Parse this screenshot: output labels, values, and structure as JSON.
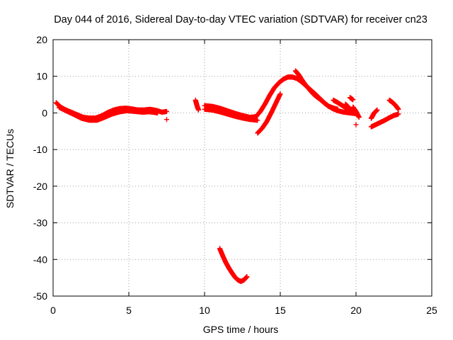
{
  "chart_data": {
    "type": "scatter",
    "title": "Day 044 of 2016, Sidereal Day-to-day VTEC variation (SDTVAR) for receiver cn23",
    "xlabel": "GPS time / hours",
    "ylabel": "SDTVAR / TECUs",
    "xlim": [
      0,
      25
    ],
    "ylim": [
      -50,
      20
    ],
    "x_ticks": [
      0,
      5,
      10,
      15,
      20,
      25
    ],
    "y_ticks": [
      20,
      10,
      0,
      -10,
      -20,
      -30,
      -40,
      -50
    ],
    "x_tick_labels": [
      "0",
      "5",
      "10",
      "15",
      "20",
      "25"
    ],
    "y_tick_labels": [
      "20",
      "10",
      "0",
      "-10",
      "-20",
      "-30",
      "-40",
      "-50"
    ],
    "grid": true,
    "colors": {
      "points": "#ff0000",
      "grid": "#a0a0a0",
      "frame": "#000000"
    },
    "series": [
      {
        "name": "SDTVAR",
        "marker": "plus",
        "segments": [
          {
            "x": [
              0.2,
              0.5,
              0.8,
              1.2,
              1.6,
              2.0,
              2.4,
              2.8,
              3.2,
              3.6,
              4.0,
              4.4,
              4.8,
              5.2,
              5.6,
              6.0,
              6.4,
              6.8,
              7.2,
              7.5
            ],
            "y": [
              2.8,
              1.6,
              0.9,
              0.2,
              -0.5,
              -1.2,
              -1.4,
              -1.4,
              -0.8,
              0.1,
              0.8,
              1.2,
              1.3,
              1.1,
              0.8,
              0.8,
              1.0,
              0.7,
              0.2,
              0.4
            ]
          },
          {
            "x": [
              0.4,
              0.9,
              1.4,
              1.9,
              2.4,
              2.9,
              3.4,
              3.9,
              4.4,
              4.9,
              5.4,
              5.9,
              6.4,
              6.9
            ],
            "y": [
              1.5,
              0.5,
              -0.5,
              -1.5,
              -2.0,
              -2.0,
              -1.2,
              -0.3,
              0.3,
              0.6,
              0.4,
              0.2,
              0.3,
              0.0
            ]
          },
          {
            "x": [
              7.5
            ],
            "y": [
              -1.8
            ]
          },
          {
            "x": [
              9.4,
              9.5,
              9.6
            ],
            "y": [
              3.5,
              2.0,
              0.8
            ]
          },
          {
            "x": [
              10.0,
              10.5,
              11.0,
              11.5,
              12.0,
              12.5,
              13.0,
              13.4,
              13.7,
              14.0,
              14.3,
              14.6,
              14.9,
              15.2,
              15.5,
              15.8,
              16.1,
              16.4,
              16.7,
              17.0,
              17.3,
              17.6,
              17.9,
              18.2,
              18.5,
              18.8,
              19.2,
              19.6,
              20.0
            ],
            "y": [
              2.0,
              1.8,
              1.3,
              0.6,
              -0.1,
              -0.7,
              -1.2,
              -1.0,
              0.5,
              2.5,
              4.8,
              6.8,
              8.2,
              9.2,
              9.8,
              9.8,
              9.4,
              8.5,
              7.4,
              6.3,
              5.2,
              4.0,
              2.8,
              1.8,
              1.1,
              0.6,
              0.2,
              0.0,
              -0.2
            ]
          },
          {
            "x": [
              10.0,
              10.5,
              11.0,
              11.5,
              12.0,
              12.5,
              13.0,
              13.5
            ],
            "y": [
              1.0,
              0.8,
              0.3,
              -0.3,
              -0.9,
              -1.4,
              -1.8,
              -2.0
            ]
          },
          {
            "x": [
              13.5,
              13.8,
              14.1,
              14.4,
              14.7,
              15.0
            ],
            "y": [
              -5.5,
              -4.2,
              -2.4,
              0.0,
              2.6,
              5.2
            ]
          },
          {
            "x": [
              16.0,
              16.2,
              16.4,
              16.6,
              16.8,
              17.0,
              17.2,
              17.4,
              17.6,
              17.8,
              18.0,
              18.2,
              18.4,
              18.6,
              18.8
            ],
            "y": [
              11.5,
              10.5,
              9.2,
              8.0,
              7.0,
              6.0,
              5.1,
              4.4,
              3.8,
              3.1,
              2.4,
              1.8,
              1.5,
              1.2,
              1.0
            ]
          },
          {
            "x": [
              18.5,
              18.8,
              19.1,
              19.4,
              19.7
            ],
            "y": [
              3.5,
              2.8,
              2.0,
              1.2,
              0.6
            ]
          },
          {
            "x": [
              19.3,
              19.5
            ],
            "y": [
              2.4,
              1.6
            ]
          },
          {
            "x": [
              19.8,
              20.0,
              20.2
            ],
            "y": [
              1.6,
              0.4,
              -1.2
            ]
          },
          {
            "x": [
              20.0
            ],
            "y": [
              -3.2
            ]
          },
          {
            "x": [
              19.6,
              19.8
            ],
            "y": [
              4.2,
              3.6
            ]
          },
          {
            "x": [
              21.0,
              21.3,
              21.6,
              21.9,
              22.2,
              22.5,
              22.8
            ],
            "y": [
              -3.8,
              -3.2,
              -2.6,
              -2.0,
              -1.3,
              -0.7,
              -0.3
            ]
          },
          {
            "x": [
              21.0,
              21.2,
              21.4
            ],
            "y": [
              -1.5,
              0.0,
              0.8
            ]
          },
          {
            "x": [
              22.2,
              22.4,
              22.6,
              22.8
            ],
            "y": [
              3.5,
              2.9,
              2.1,
              1.0
            ]
          },
          {
            "x": [
              11.0,
              11.2,
              11.4,
              11.6,
              11.8,
              12.0,
              12.2,
              12.4,
              12.6,
              12.8
            ],
            "y": [
              -37.0,
              -39.0,
              -40.8,
              -42.3,
              -43.6,
              -44.8,
              -45.6,
              -46.0,
              -45.6,
              -44.7
            ]
          }
        ]
      }
    ]
  }
}
